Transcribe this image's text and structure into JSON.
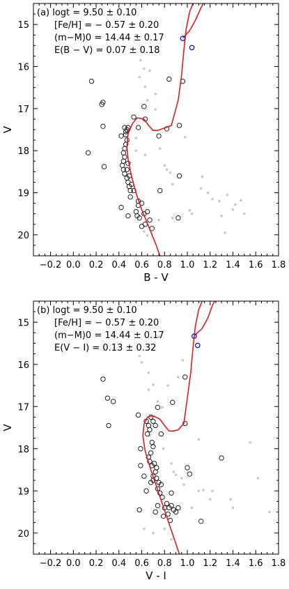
{
  "chart_data": [
    {
      "type": "scatter",
      "xlabel": "B - V",
      "ylabel": "V",
      "xlim": [
        -0.35,
        1.8
      ],
      "ylim": [
        14.5,
        20.5
      ],
      "y_inverted": true,
      "xticks": [
        -0.2,
        0.0,
        0.2,
        0.4,
        0.6,
        0.8,
        1.0,
        1.2,
        1.4,
        1.6,
        1.8
      ],
      "yticks": [
        15,
        16,
        17,
        18,
        19,
        20
      ],
      "annotation": [
        "(a) logt = 9.50 ± 0.10",
        "[Fe/H] = − 0.57 ± 0.20",
        "(m−M)0 = 14.44 ± 0.17",
        "E(B − V) = 0.07 ± 0.18"
      ],
      "isochrone_color": "#e41a1c",
      "member_color": "#222222",
      "field_color": "#c8c8c8",
      "highlight_color": "#1f1fc8",
      "isochrone": [
        [
          0.76,
          20.5
        ],
        [
          0.72,
          20.2
        ],
        [
          0.66,
          19.8
        ],
        [
          0.6,
          19.4
        ],
        [
          0.55,
          19.0
        ],
        [
          0.51,
          18.6
        ],
        [
          0.48,
          18.2
        ],
        [
          0.47,
          17.9
        ],
        [
          0.48,
          17.6
        ],
        [
          0.52,
          17.35
        ],
        [
          0.56,
          17.22
        ],
        [
          0.62,
          17.25
        ],
        [
          0.66,
          17.4
        ],
        [
          0.7,
          17.52
        ],
        [
          0.74,
          17.52
        ],
        [
          0.79,
          17.47
        ],
        [
          0.86,
          17.4
        ],
        [
          0.92,
          16.8
        ],
        [
          0.95,
          16.2
        ],
        [
          0.97,
          15.6
        ],
        [
          0.99,
          15.1
        ],
        [
          1.02,
          14.7
        ],
        [
          1.05,
          14.5
        ]
      ],
      "isochrone2": [
        [
          0.96,
          15.32
        ],
        [
          1.02,
          15.15
        ],
        [
          1.07,
          14.9
        ],
        [
          1.12,
          14.6
        ],
        [
          1.14,
          14.5
        ]
      ],
      "members": [
        [
          0.45,
          17.45
        ],
        [
          0.46,
          17.55
        ],
        [
          0.47,
          17.5
        ],
        [
          0.48,
          17.45
        ],
        [
          0.46,
          17.62
        ],
        [
          0.47,
          17.75
        ],
        [
          0.46,
          17.85
        ],
        [
          0.45,
          17.95
        ],
        [
          0.44,
          18.05
        ],
        [
          0.45,
          18.15
        ],
        [
          0.44,
          18.25
        ],
        [
          0.43,
          18.35
        ],
        [
          0.44,
          18.45
        ],
        [
          0.45,
          18.55
        ],
        [
          0.47,
          18.65
        ],
        [
          0.48,
          18.75
        ],
        [
          0.49,
          18.85
        ],
        [
          0.5,
          18.95
        ],
        [
          0.48,
          18.3
        ],
        [
          0.47,
          18.45
        ],
        [
          0.49,
          18.6
        ],
        [
          0.51,
          18.8
        ],
        [
          0.53,
          18.95
        ],
        [
          0.5,
          19.1
        ],
        [
          0.55,
          19.45
        ],
        [
          0.56,
          19.55
        ],
        [
          0.57,
          19.3
        ],
        [
          0.58,
          19.6
        ],
        [
          0.6,
          19.8
        ],
        [
          0.62,
          19.5
        ],
        [
          0.63,
          19.75
        ],
        [
          0.65,
          19.45
        ],
        [
          0.67,
          19.65
        ],
        [
          0.69,
          19.85
        ],
        [
          0.57,
          19.2
        ],
        [
          0.6,
          19.25
        ],
        [
          0.42,
          19.35
        ],
        [
          0.48,
          19.55
        ],
        [
          0.53,
          17.2
        ],
        [
          0.57,
          17.45
        ],
        [
          0.63,
          17.25
        ],
        [
          0.75,
          17.65
        ],
        [
          0.82,
          17.48
        ],
        [
          0.84,
          16.3
        ],
        [
          0.93,
          18.6
        ],
        [
          0.93,
          17.4
        ],
        [
          0.92,
          19.6
        ],
        [
          0.76,
          18.95
        ],
        [
          0.62,
          16.95
        ],
        [
          0.26,
          17.42
        ],
        [
          0.27,
          18.38
        ],
        [
          0.25,
          16.9
        ],
        [
          0.26,
          16.85
        ],
        [
          0.16,
          16.35
        ],
        [
          0.13,
          18.05
        ],
        [
          0.42,
          17.65
        ],
        [
          0.96,
          16.35
        ]
      ],
      "highlights": [
        [
          0.96,
          15.33
        ],
        [
          1.04,
          15.55
        ]
      ],
      "field": [
        [
          0.55,
          15.25
        ],
        [
          0.59,
          15.85
        ],
        [
          0.62,
          16.05
        ],
        [
          0.67,
          16.1
        ],
        [
          0.72,
          16.65
        ],
        [
          0.58,
          16.25
        ],
        [
          0.63,
          16.48
        ],
        [
          0.65,
          16.8
        ],
        [
          0.72,
          17.02
        ],
        [
          0.55,
          17.7
        ],
        [
          0.55,
          18.0
        ],
        [
          0.63,
          18.1
        ],
        [
          0.76,
          17.95
        ],
        [
          0.8,
          18.35
        ],
        [
          0.82,
          18.45
        ],
        [
          0.85,
          18.52
        ],
        [
          0.87,
          18.8
        ],
        [
          0.98,
          17.68
        ],
        [
          1.02,
          19.42
        ],
        [
          1.04,
          19.5
        ],
        [
          1.12,
          18.9
        ],
        [
          1.13,
          18.62
        ],
        [
          1.22,
          19.15
        ],
        [
          1.28,
          19.2
        ],
        [
          1.3,
          19.55
        ],
        [
          1.35,
          19.05
        ],
        [
          1.4,
          19.4
        ],
        [
          1.42,
          19.28
        ],
        [
          1.47,
          19.18
        ],
        [
          1.5,
          19.5
        ],
        [
          1.18,
          19.0
        ],
        [
          1.33,
          19.95
        ],
        [
          0.87,
          19.6
        ],
        [
          0.75,
          19.65
        ],
        [
          0.65,
          20.02
        ],
        [
          0.62,
          19.92
        ]
      ]
    },
    {
      "type": "scatter",
      "xlabel": "V - I",
      "ylabel": "V",
      "xlim": [
        -0.35,
        1.8
      ],
      "ylim": [
        14.5,
        20.5
      ],
      "y_inverted": true,
      "xticks": [
        -0.2,
        0.0,
        0.2,
        0.4,
        0.6,
        0.8,
        1.0,
        1.2,
        1.4,
        1.6,
        1.8
      ],
      "yticks": [
        15,
        16,
        17,
        18,
        19,
        20
      ],
      "annotation": [
        "(b) logt = 9.50 ± 0.10",
        "[Fe/H] = − 0.57 ± 0.20",
        "(m−M)0 = 14.44 ± 0.17",
        "E(V − I) = 0.13 ± 0.32"
      ],
      "isochrone_color": "#e41a1c",
      "member_color": "#222222",
      "field_color": "#c8c8c8",
      "highlight_color": "#1f1fc8",
      "isochrone": [
        [
          0.93,
          20.5
        ],
        [
          0.88,
          20.1
        ],
        [
          0.83,
          19.7
        ],
        [
          0.78,
          19.3
        ],
        [
          0.73,
          18.9
        ],
        [
          0.68,
          18.5
        ],
        [
          0.63,
          18.05
        ],
        [
          0.61,
          17.7
        ],
        [
          0.62,
          17.42
        ],
        [
          0.65,
          17.25
        ],
        [
          0.7,
          17.22
        ],
        [
          0.76,
          17.3
        ],
        [
          0.8,
          17.45
        ],
        [
          0.84,
          17.58
        ],
        [
          0.88,
          17.58
        ],
        [
          0.92,
          17.55
        ],
        [
          0.97,
          17.4
        ],
        [
          1.0,
          16.8
        ],
        [
          1.03,
          16.2
        ],
        [
          1.05,
          15.6
        ],
        [
          1.07,
          15.1
        ],
        [
          1.1,
          14.7
        ],
        [
          1.13,
          14.5
        ]
      ],
      "isochrone2": [
        [
          1.06,
          15.32
        ],
        [
          1.13,
          15.15
        ],
        [
          1.18,
          14.9
        ],
        [
          1.22,
          14.6
        ],
        [
          1.24,
          14.5
        ]
      ],
      "members": [
        [
          0.64,
          17.35
        ],
        [
          0.66,
          17.45
        ],
        [
          0.67,
          17.55
        ],
        [
          0.65,
          17.65
        ],
        [
          0.68,
          17.25
        ],
        [
          0.7,
          17.35
        ],
        [
          0.72,
          17.45
        ],
        [
          0.69,
          17.85
        ],
        [
          0.7,
          17.95
        ],
        [
          0.68,
          18.1
        ],
        [
          0.66,
          18.2
        ],
        [
          0.67,
          18.3
        ],
        [
          0.69,
          18.4
        ],
        [
          0.71,
          18.35
        ],
        [
          0.73,
          18.45
        ],
        [
          0.72,
          18.55
        ],
        [
          0.7,
          18.65
        ],
        [
          0.73,
          18.7
        ],
        [
          0.75,
          18.8
        ],
        [
          0.77,
          18.85
        ],
        [
          0.74,
          18.95
        ],
        [
          0.76,
          19.05
        ],
        [
          0.78,
          19.15
        ],
        [
          0.7,
          18.75
        ],
        [
          0.68,
          18.8
        ],
        [
          0.82,
          19.3
        ],
        [
          0.84,
          19.4
        ],
        [
          0.86,
          19.35
        ],
        [
          0.88,
          19.45
        ],
        [
          0.8,
          19.4
        ],
        [
          0.83,
          19.55
        ],
        [
          0.79,
          19.6
        ],
        [
          0.85,
          19.7
        ],
        [
          0.9,
          19.5
        ],
        [
          0.74,
          19.35
        ],
        [
          0.72,
          19.5
        ],
        [
          0.64,
          19.0
        ],
        [
          0.62,
          18.65
        ],
        [
          0.59,
          18.4
        ],
        [
          0.59,
          18.0
        ],
        [
          0.57,
          17.2
        ],
        [
          0.74,
          17.02
        ],
        [
          0.87,
          16.9
        ],
        [
          0.98,
          17.4
        ],
        [
          1.0,
          18.45
        ],
        [
          1.02,
          18.6
        ],
        [
          1.12,
          19.72
        ],
        [
          1.3,
          18.22
        ],
        [
          0.98,
          16.3
        ],
        [
          0.86,
          19.05
        ],
        [
          0.77,
          17.65
        ],
        [
          0.3,
          16.8
        ],
        [
          0.35,
          16.88
        ],
        [
          0.31,
          17.45
        ],
        [
          0.26,
          16.35
        ],
        [
          0.58,
          19.45
        ],
        [
          0.92,
          19.4
        ]
      ],
      "highlights": [
        [
          1.06,
          15.33
        ],
        [
          1.09,
          15.55
        ]
      ],
      "field": [
        [
          0.75,
          15.35
        ],
        [
          0.58,
          15.8
        ],
        [
          0.6,
          15.95
        ],
        [
          0.66,
          16.2
        ],
        [
          0.7,
          16.48
        ],
        [
          0.66,
          16.6
        ],
        [
          0.74,
          16.88
        ],
        [
          0.78,
          17.02
        ],
        [
          0.67,
          17.68
        ],
        [
          0.7,
          17.9
        ],
        [
          0.79,
          18.0
        ],
        [
          0.86,
          18.35
        ],
        [
          0.88,
          18.55
        ],
        [
          0.9,
          18.62
        ],
        [
          0.95,
          18.7
        ],
        [
          0.97,
          18.85
        ],
        [
          1.1,
          17.78
        ],
        [
          1.14,
          18.98
        ],
        [
          1.2,
          19.2
        ],
        [
          1.22,
          19.0
        ],
        [
          1.38,
          19.2
        ],
        [
          1.4,
          19.4
        ],
        [
          1.55,
          17.85
        ],
        [
          1.62,
          18.7
        ],
        [
          1.72,
          19.5
        ],
        [
          0.83,
          16.5
        ],
        [
          0.92,
          16.3
        ],
        [
          0.96,
          15.9
        ],
        [
          0.8,
          19.9
        ],
        [
          0.62,
          19.9
        ],
        [
          0.7,
          20.0
        ],
        [
          0.86,
          20.15
        ],
        [
          1.04,
          19.4
        ],
        [
          1.1,
          19.0
        ]
      ]
    }
  ]
}
